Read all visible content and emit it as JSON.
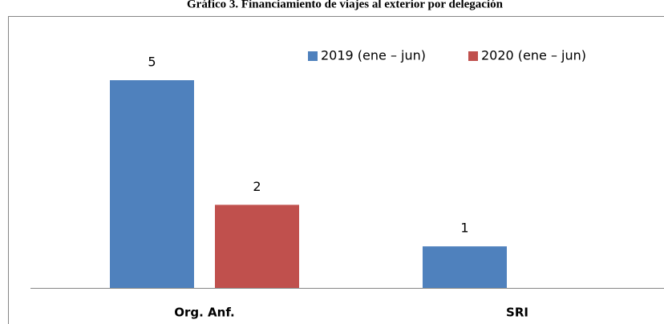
{
  "chart_data": {
    "type": "bar",
    "title": "Gráfico 3. Financiamiento de viajes al exterior por delegación",
    "categories": [
      "Org. Anf.",
      "SRI"
    ],
    "series": [
      {
        "name": "2019 (ene – jun)",
        "color": "#4f81bd",
        "values": [
          5,
          1
        ]
      },
      {
        "name": "2020 (ene – jun)",
        "color": "#c0504d",
        "values": [
          2,
          null
        ]
      }
    ],
    "legend": "top-right"
  }
}
